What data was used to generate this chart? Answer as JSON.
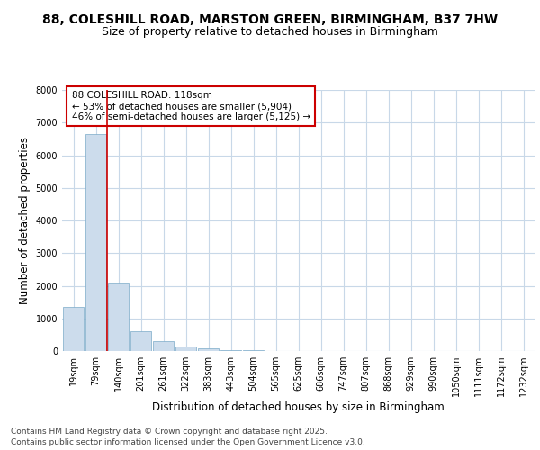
{
  "title_line1": "88, COLESHILL ROAD, MARSTON GREEN, BIRMINGHAM, B37 7HW",
  "title_line2": "Size of property relative to detached houses in Birmingham",
  "xlabel": "Distribution of detached houses by size in Birmingham",
  "ylabel": "Number of detached properties",
  "annotation_title": "88 COLESHILL ROAD: 118sqm",
  "annotation_line2": "← 53% of detached houses are smaller (5,904)",
  "annotation_line3": "46% of semi-detached houses are larger (5,125) →",
  "footer_line1": "Contains HM Land Registry data © Crown copyright and database right 2025.",
  "footer_line2": "Contains public sector information licensed under the Open Government Licence v3.0.",
  "categories": [
    "19sqm",
    "79sqm",
    "140sqm",
    "201sqm",
    "261sqm",
    "322sqm",
    "383sqm",
    "443sqm",
    "504sqm",
    "565sqm",
    "625sqm",
    "686sqm",
    "747sqm",
    "807sqm",
    "868sqm",
    "929sqm",
    "990sqm",
    "1050sqm",
    "1111sqm",
    "1172sqm",
    "1232sqm"
  ],
  "values": [
    1350,
    6650,
    2100,
    620,
    300,
    150,
    80,
    40,
    20,
    10,
    5,
    0,
    0,
    0,
    0,
    0,
    0,
    0,
    0,
    0,
    0
  ],
  "bar_color": "#ccdcec",
  "bar_edge_color": "#7aaac8",
  "red_line_x": 1.5,
  "vline_color": "#cc0000",
  "annotation_box_edgecolor": "#cc0000",
  "ylim": [
    0,
    8000
  ],
  "yticks": [
    0,
    1000,
    2000,
    3000,
    4000,
    5000,
    6000,
    7000,
    8000
  ],
  "background_color": "#ffffff",
  "plot_bg_color": "#ffffff",
  "grid_color": "#c8d8e8",
  "title_fontsize": 10,
  "subtitle_fontsize": 9,
  "axis_label_fontsize": 8.5,
  "tick_fontsize": 7,
  "annotation_fontsize": 7.5,
  "footer_fontsize": 6.5
}
